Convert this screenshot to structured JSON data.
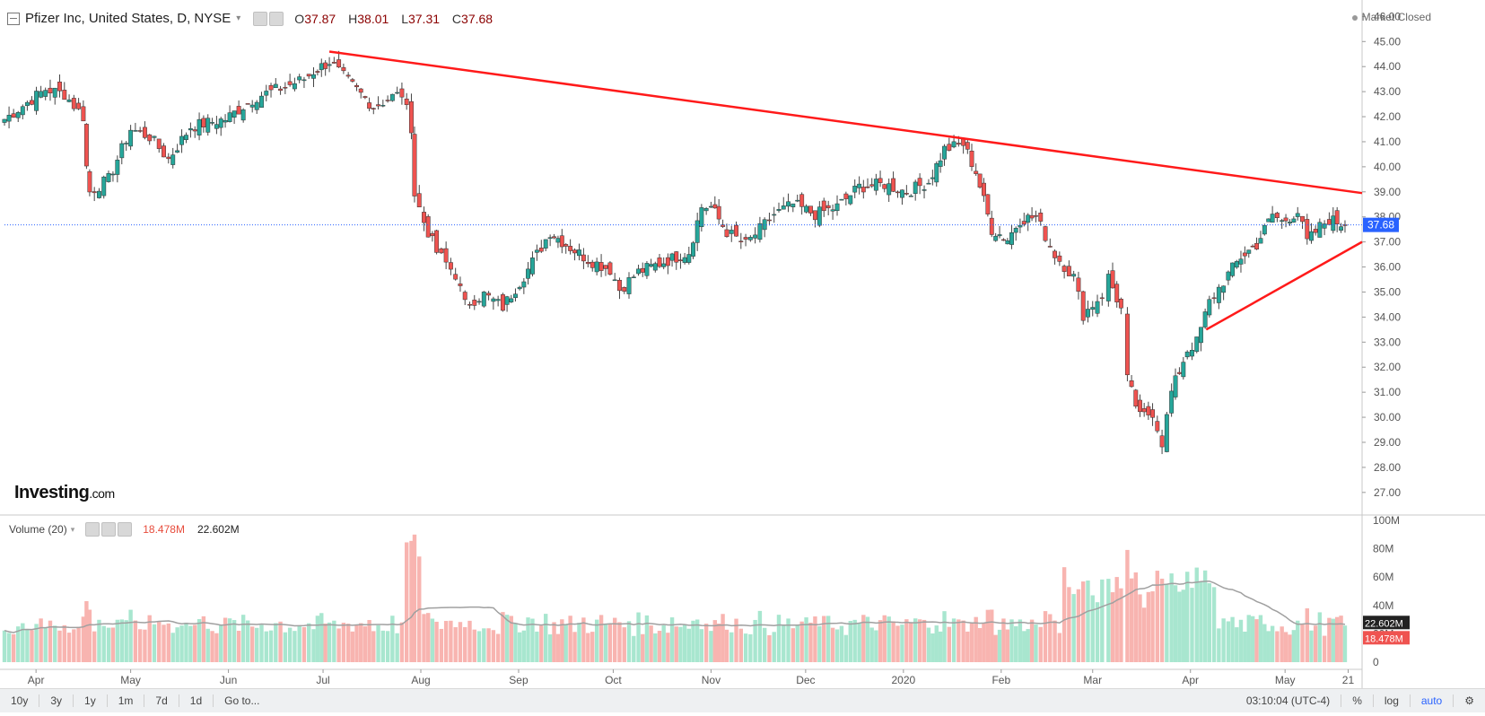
{
  "header": {
    "title": "Pfizer Inc, United States, D, NYSE",
    "open_label": "O",
    "open": "37.87",
    "high_label": "H",
    "high": "38.01",
    "low_label": "L",
    "low": "37.31",
    "close_label": "C",
    "close": "37.68",
    "market_status": "Market Closed"
  },
  "logo": {
    "main": "Investing",
    "suffix": ".com"
  },
  "volume_legend": {
    "label": "Volume (20)",
    "value1": "18.478M",
    "value2": "22.602M"
  },
  "toolbar": {
    "ranges": [
      "10y",
      "3y",
      "1y",
      "1m",
      "7d",
      "1d",
      "Go to..."
    ],
    "time": "03:10:04 (UTC-4)",
    "percent": "%",
    "log": "log",
    "auto": "auto"
  },
  "colors": {
    "up": "#26a69a",
    "down": "#ef5350",
    "trendline": "#ff1a1a",
    "price_line": "#2962ff",
    "volume_ma": "#a0a0a0"
  },
  "chart_data": {
    "type": "candlestick",
    "price_axis": {
      "min": 27,
      "max": 46,
      "ticks": [
        "46.00",
        "45.00",
        "44.00",
        "43.00",
        "42.00",
        "41.00",
        "40.00",
        "39.00",
        "38.00",
        "37.00",
        "36.00",
        "35.00",
        "34.00",
        "33.00",
        "32.00",
        "31.00",
        "30.00",
        "29.00",
        "28.00",
        "27.00"
      ]
    },
    "current_price": "37.68",
    "volume_axis": {
      "ticks": [
        "100M",
        "80M",
        "60M",
        "40M",
        "20M",
        "0"
      ],
      "ma_label": "22.602M",
      "last_label": "18.478M"
    },
    "x_axis_labels": [
      "Apr",
      "May",
      "Jun",
      "Jul",
      "Aug",
      "Sep",
      "Oct",
      "Nov",
      "Dec",
      "2020",
      "Feb",
      "Mar",
      "Apr",
      "May",
      "21"
    ],
    "close_path": [
      {
        "date": "2019-03-22",
        "close": 41.9
      },
      {
        "date": "2019-04-04",
        "close": 43.1
      },
      {
        "date": "2019-04-10",
        "close": 42.9
      },
      {
        "date": "2019-04-16",
        "close": 42.0
      },
      {
        "date": "2019-04-17",
        "close": 40.0
      },
      {
        "date": "2019-04-18",
        "close": 39.0
      },
      {
        "date": "2019-04-24",
        "close": 39.5
      },
      {
        "date": "2019-05-01",
        "close": 41.5
      },
      {
        "date": "2019-05-07",
        "close": 41.2
      },
      {
        "date": "2019-05-13",
        "close": 40.3
      },
      {
        "date": "2019-05-20",
        "close": 41.6
      },
      {
        "date": "2019-05-31",
        "close": 41.9
      },
      {
        "date": "2019-06-10",
        "close": 42.8
      },
      {
        "date": "2019-06-19",
        "close": 43.2
      },
      {
        "date": "2019-06-25",
        "close": 43.5
      },
      {
        "date": "2019-06-28",
        "close": 43.8
      },
      {
        "date": "2019-07-03",
        "close": 44.2
      },
      {
        "date": "2019-07-09",
        "close": 43.4
      },
      {
        "date": "2019-07-17",
        "close": 42.4
      },
      {
        "date": "2019-07-23",
        "close": 42.8
      },
      {
        "date": "2019-07-26",
        "close": 42.9
      },
      {
        "date": "2019-07-29",
        "close": 41.6
      },
      {
        "date": "2019-07-30",
        "close": 38.9
      },
      {
        "date": "2019-08-02",
        "close": 37.8
      },
      {
        "date": "2019-08-06",
        "close": 36.6
      },
      {
        "date": "2019-08-12",
        "close": 35.7
      },
      {
        "date": "2019-08-15",
        "close": 34.5
      },
      {
        "date": "2019-08-21",
        "close": 34.9
      },
      {
        "date": "2019-08-27",
        "close": 34.4
      },
      {
        "date": "2019-09-04",
        "close": 35.9
      },
      {
        "date": "2019-09-11",
        "close": 37.4
      },
      {
        "date": "2019-09-16",
        "close": 36.9
      },
      {
        "date": "2019-09-23",
        "close": 36.3
      },
      {
        "date": "2019-09-30",
        "close": 35.9
      },
      {
        "date": "2019-10-03",
        "close": 35.1
      },
      {
        "date": "2019-10-09",
        "close": 35.8
      },
      {
        "date": "2019-10-17",
        "close": 36.2
      },
      {
        "date": "2019-10-25",
        "close": 36.6
      },
      {
        "date": "2019-10-29",
        "close": 38.4
      },
      {
        "date": "2019-11-01",
        "close": 38.4
      },
      {
        "date": "2019-11-06",
        "close": 37.4
      },
      {
        "date": "2019-11-12",
        "close": 36.9
      },
      {
        "date": "2019-11-15",
        "close": 37.3
      },
      {
        "date": "2019-11-21",
        "close": 38.1
      },
      {
        "date": "2019-11-27",
        "close": 38.5
      },
      {
        "date": "2019-12-04",
        "close": 38.1
      },
      {
        "date": "2019-12-11",
        "close": 38.4
      },
      {
        "date": "2019-12-18",
        "close": 39.2
      },
      {
        "date": "2019-12-26",
        "close": 39.3
      },
      {
        "date": "2020-01-02",
        "close": 39.0
      },
      {
        "date": "2020-01-09",
        "close": 39.4
      },
      {
        "date": "2020-01-14",
        "close": 40.7
      },
      {
        "date": "2020-01-20",
        "close": 40.9
      },
      {
        "date": "2020-01-24",
        "close": 39.8
      },
      {
        "date": "2020-01-29",
        "close": 37.5
      },
      {
        "date": "2020-02-03",
        "close": 37.1
      },
      {
        "date": "2020-02-07",
        "close": 37.9
      },
      {
        "date": "2020-02-12",
        "close": 38.0
      },
      {
        "date": "2020-02-18",
        "close": 36.5
      },
      {
        "date": "2020-02-24",
        "close": 35.6
      },
      {
        "date": "2020-02-27",
        "close": 34.1
      },
      {
        "date": "2020-03-04",
        "close": 34.9
      },
      {
        "date": "2020-03-06",
        "close": 35.6
      },
      {
        "date": "2020-03-10",
        "close": 34.3
      },
      {
        "date": "2020-03-12",
        "close": 31.5
      },
      {
        "date": "2020-03-16",
        "close": 30.0
      },
      {
        "date": "2020-03-20",
        "close": 30.2
      },
      {
        "date": "2020-03-23",
        "close": 29.0
      },
      {
        "date": "2020-03-26",
        "close": 31.0
      },
      {
        "date": "2020-03-31",
        "close": 32.7
      },
      {
        "date": "2020-04-03",
        "close": 33.0
      },
      {
        "date": "2020-04-07",
        "close": 34.6
      },
      {
        "date": "2020-04-13",
        "close": 35.7
      },
      {
        "date": "2020-04-17",
        "close": 36.4
      },
      {
        "date": "2020-04-22",
        "close": 36.9
      },
      {
        "date": "2020-04-27",
        "close": 38.1
      },
      {
        "date": "2020-04-30",
        "close": 37.8
      },
      {
        "date": "2020-05-05",
        "close": 38.2
      },
      {
        "date": "2020-05-08",
        "close": 37.0
      },
      {
        "date": "2020-05-12",
        "close": 37.6
      },
      {
        "date": "2020-05-15",
        "close": 37.9
      },
      {
        "date": "2020-05-20",
        "close": 37.68
      }
    ],
    "trendlines": [
      {
        "name": "resistance",
        "from": {
          "date": "2019-07-03",
          "price": 44.6
        },
        "to": {
          "date": "2020-05-22",
          "price": 38.95
        }
      },
      {
        "name": "support",
        "from": {
          "date": "2020-04-06",
          "price": 33.5
        },
        "to": {
          "date": "2020-05-22",
          "price": 37.0
        }
      }
    ],
    "volume": {
      "unit": "M",
      "baseline_ma": 22.6
    }
  }
}
